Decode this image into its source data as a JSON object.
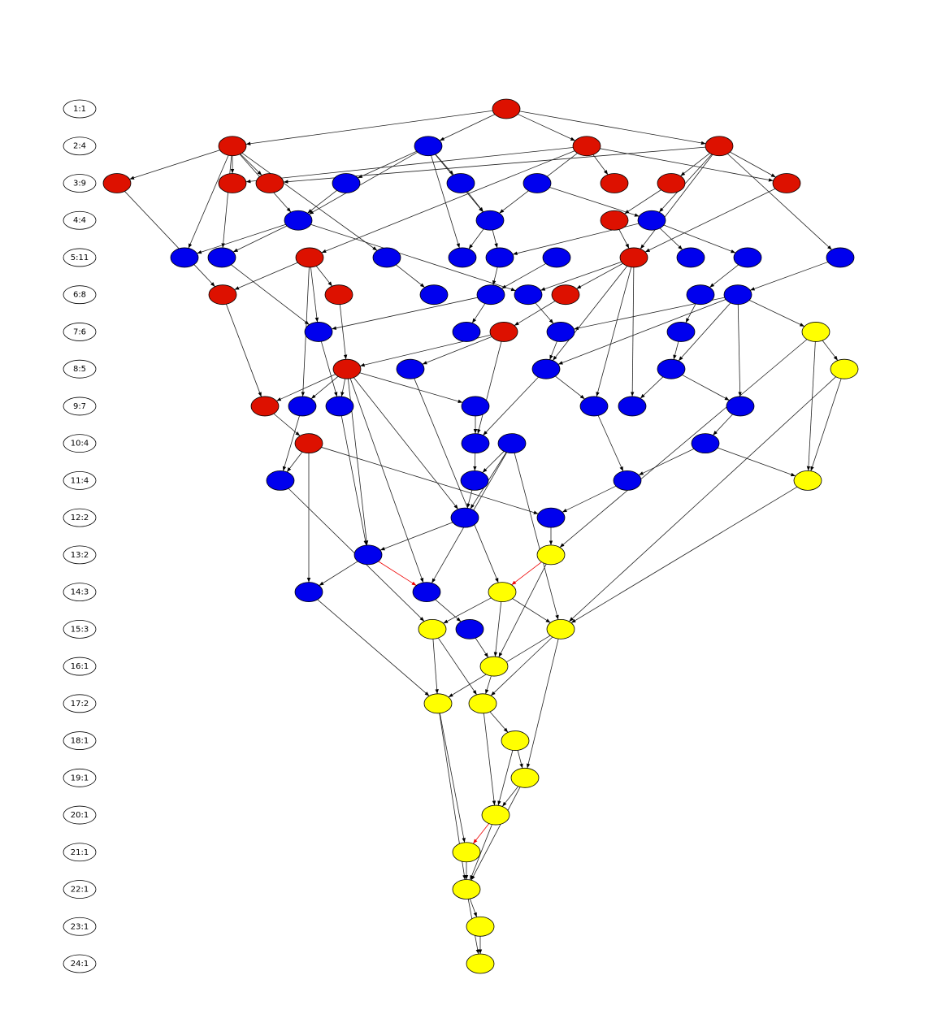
{
  "rank_labels": [
    "1:1",
    "2:4",
    "3:9",
    "4:4",
    "5:11",
    "6:8",
    "7:6",
    "8:5",
    "9:7",
    "10:4",
    "11:4",
    "12:2",
    "13:2",
    "14:3",
    "15:3",
    "16:1",
    "17:2",
    "18:1",
    "19:1",
    "20:1",
    "21:1",
    "22:1",
    "23:1",
    "24:1"
  ]
}
